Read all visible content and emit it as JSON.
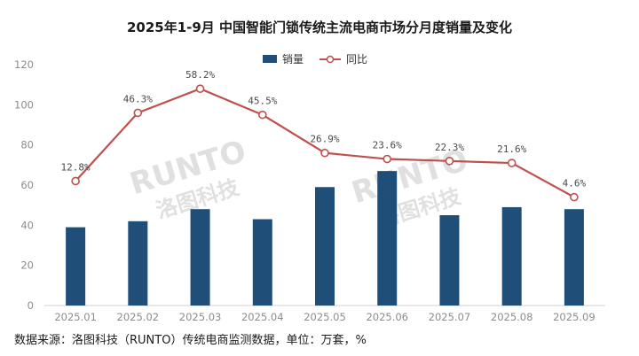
{
  "chart_data": {
    "type": "bar",
    "title": "2025年1-9月 中国智能门锁传统主流电商市场分月度销量及变化",
    "categories": [
      "2025.01",
      "2025.02",
      "2025.03",
      "2025.04",
      "2025.05",
      "2025.06",
      "2025.07",
      "2025.08",
      "2025.09"
    ],
    "series": [
      {
        "name": "销量",
        "type": "bar",
        "color": "#1f4e79",
        "values": [
          39,
          42,
          48,
          43,
          59,
          67,
          45,
          49,
          48
        ]
      },
      {
        "name": "同比",
        "type": "line",
        "color": "#c0504d",
        "values": [
          62,
          96,
          108,
          95,
          76,
          73,
          72,
          71,
          54
        ],
        "labels": [
          "12.8%",
          "46.3%",
          "58.2%",
          "45.5%",
          "26.9%",
          "23.6%",
          "22.3%",
          "21.6%",
          "4.6%"
        ]
      }
    ],
    "ylim": [
      0,
      120
    ],
    "yticks": [
      0,
      20,
      40,
      60,
      80,
      100,
      120
    ],
    "xlabel": "",
    "ylabel": "",
    "legend": "top-center",
    "grid": false
  },
  "watermark": {
    "logo": "RUNTO",
    "cn": "洛图科技"
  },
  "source_note": "数据来源：洛图科技（RUNTO）传统电商监测数据，单位：万套，%"
}
